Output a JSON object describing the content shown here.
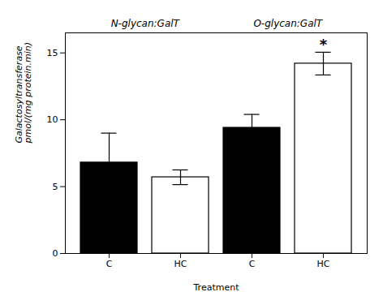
{
  "chart_data": {
    "type": "bar",
    "xlabel": "Treatment",
    "ylabel": "Galactosyltransferase\npmol/(mg protein.min)",
    "categories": [
      "C",
      "HC",
      "C",
      "HC"
    ],
    "groups": [
      "N-glycan:GalT",
      "N-glycan:GalT",
      "O-glycan:GalT",
      "O-glycan:GalT"
    ],
    "values": [
      6.8,
      5.7,
      9.4,
      14.2
    ],
    "errors": [
      2.2,
      0.55,
      1.0,
      0.85
    ],
    "colors": [
      "black",
      "white",
      "black",
      "white"
    ],
    "annotations": [
      null,
      null,
      null,
      "*"
    ],
    "ylim": [
      0,
      16.5
    ],
    "yticks": [
      0,
      5,
      10,
      15
    ],
    "grid": false
  }
}
